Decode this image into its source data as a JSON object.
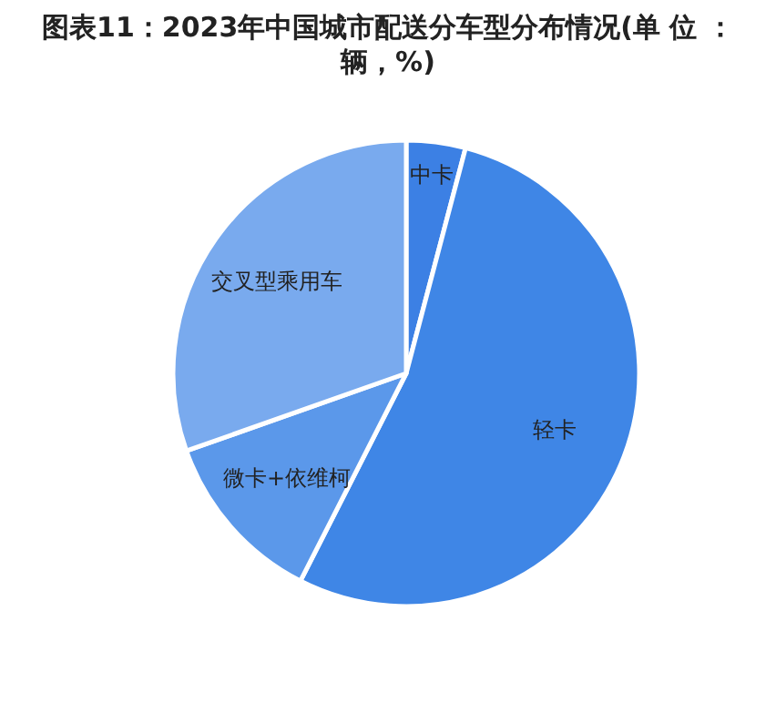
{
  "chart_data": {
    "type": "pie",
    "title": "图表11：2023年中国城市配送分车型分布情况(单 位 ：辆，%)",
    "categories": [
      "中卡",
      "轻卡",
      "微卡+依维柯",
      "交叉型乘用车"
    ],
    "values": [
      4.1,
      53.4,
      12.1,
      30.4
    ],
    "colors": [
      "#3c80e4",
      "#3f86e6",
      "#5b98ea",
      "#79aaee"
    ],
    "legend": false
  }
}
